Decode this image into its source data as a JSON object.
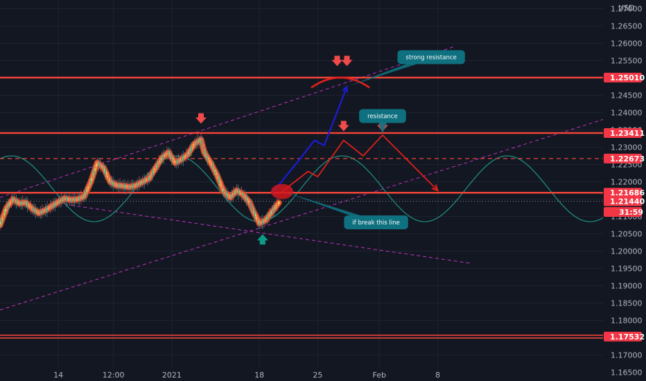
{
  "chart_data": {
    "type": "line",
    "currency": "USD",
    "price_axis": {
      "min": 1.1625,
      "max": 1.2725,
      "ticks": [
        "1.27000",
        "1.26500",
        "1.26000",
        "1.25500",
        "1.25000",
        "1.24500",
        "1.24000",
        "1.23500",
        "1.23000",
        "1.22500",
        "1.22000",
        "1.21500",
        "1.21000",
        "1.20500",
        "1.20000",
        "1.19500",
        "1.19000",
        "1.18500",
        "1.18000",
        "1.17500",
        "1.17000",
        "1.16500"
      ]
    },
    "time_axis": {
      "labels": [
        {
          "text": "14",
          "bar": 18
        },
        {
          "text": "12:00",
          "bar": 35
        },
        {
          "text": "2021",
          "bar": 53
        },
        {
          "text": "18",
          "bar": 80
        },
        {
          "text": "25",
          "bar": 98
        },
        {
          "text": "Feb",
          "bar": 117
        },
        {
          "text": "8",
          "bar": 135
        }
      ],
      "bar_range": [
        0,
        186
      ]
    },
    "price_series": [
      [
        0,
        1.2075
      ],
      [
        2,
        1.2125
      ],
      [
        4,
        1.215
      ],
      [
        6,
        1.2138
      ],
      [
        8,
        1.214
      ],
      [
        10,
        1.2122
      ],
      [
        12,
        1.211
      ],
      [
        14,
        1.2118
      ],
      [
        16,
        1.213
      ],
      [
        18,
        1.2142
      ],
      [
        20,
        1.2152
      ],
      [
        22,
        1.2148
      ],
      [
        24,
        1.215
      ],
      [
        26,
        1.2158
      ],
      [
        28,
        1.22
      ],
      [
        30,
        1.2255
      ],
      [
        32,
        1.224
      ],
      [
        34,
        1.22
      ],
      [
        36,
        1.219
      ],
      [
        38,
        1.2188
      ],
      [
        40,
        1.2185
      ],
      [
        42,
        1.219
      ],
      [
        44,
        1.22
      ],
      [
        46,
        1.221
      ],
      [
        48,
        1.224
      ],
      [
        50,
        1.227
      ],
      [
        52,
        1.2285
      ],
      [
        54,
        1.2255
      ],
      [
        56,
        1.2265
      ],
      [
        58,
        1.228
      ],
      [
        60,
        1.231
      ],
      [
        62,
        1.2322
      ],
      [
        63,
        1.2285
      ],
      [
        65,
        1.2255
      ],
      [
        67,
        1.2218
      ],
      [
        69,
        1.2172
      ],
      [
        71,
        1.2155
      ],
      [
        73,
        1.2175
      ],
      [
        75,
        1.2163
      ],
      [
        77,
        1.214
      ],
      [
        78,
        1.2118
      ],
      [
        80,
        1.208
      ],
      [
        82,
        1.209
      ],
      [
        84,
        1.2115
      ],
      [
        86,
        1.214
      ]
    ],
    "horizontal_levels": [
      {
        "label": "1.25010",
        "value": 1.2501,
        "style": "solid"
      },
      {
        "label": "1.23411",
        "value": 1.23411,
        "style": "solid"
      },
      {
        "label": "1.22673",
        "value": 1.22673,
        "style": "dashed"
      },
      {
        "label": "1.21686",
        "value": 1.21686,
        "style": "solid"
      },
      {
        "label": "1.21440",
        "value": 1.2144,
        "style": "dotted"
      },
      {
        "label": "1.17532",
        "value": 1.17532,
        "style": "double"
      }
    ],
    "countdown": "31:59",
    "countdown_value": 1.2113,
    "sine_wave": {
      "center": 1.218,
      "amplitude": 0.0095,
      "period": 51,
      "trough_bar": 80
    },
    "channel_lines": [
      {
        "from": [
          0,
          1.2155
        ],
        "to": [
          140,
          1.259
        ]
      },
      {
        "from": [
          0,
          1.183
        ],
        "to": [
          186,
          1.238
        ]
      },
      {
        "from": [
          20,
          1.2135
        ],
        "to": [
          145,
          1.1965
        ]
      }
    ],
    "projection_blue": [
      [
        84,
        1.2168
      ],
      [
        92,
        1.226
      ],
      [
        97,
        1.232
      ],
      [
        100,
        1.2305
      ],
      [
        107,
        1.2475
      ]
    ],
    "projection_red": [
      [
        87,
        1.2172
      ],
      [
        95,
        1.223
      ],
      [
        98,
        1.2215
      ],
      [
        106,
        1.232
      ],
      [
        112,
        1.2275
      ],
      [
        118,
        1.2335
      ],
      [
        135,
        1.2175
      ]
    ],
    "arc": {
      "from": [
        96,
        1.2472
      ],
      "peak": [
        105,
        1.2502
      ],
      "to": [
        114,
        1.2472
      ]
    },
    "down_arrows": [
      [
        62,
        1.238
      ],
      [
        104,
        1.2546
      ],
      [
        107,
        1.2546
      ],
      [
        106,
        1.2358
      ],
      [
        118,
        1.2358
      ]
    ],
    "up_arrows": [
      [
        81,
        1.2037
      ]
    ],
    "breakout_marker": [
      87,
      1.2172
    ],
    "annotations": [
      {
        "text": "strong resistance",
        "target": [
          108,
          1.2478
        ],
        "box_bar": 133,
        "box_value": 1.256
      },
      {
        "text": "resistance",
        "target": [
          118,
          1.234
        ],
        "box_bar": 118,
        "box_value": 1.239
      },
      {
        "text": "if break this line",
        "target": [
          88,
          1.217
        ],
        "box_bar": 116,
        "box_value": 1.2083
      }
    ],
    "colors": {
      "background": "#131722",
      "level": "#f0453a",
      "level_tag": "#f23645",
      "sine": "#1e8b7f",
      "channel": "#c032c0",
      "blue": "#1c1cd4",
      "red": "#e0201a",
      "annotation_box": "#0f7180",
      "up_arrow": "#0d9a86",
      "price_band": "#f59b29"
    }
  }
}
